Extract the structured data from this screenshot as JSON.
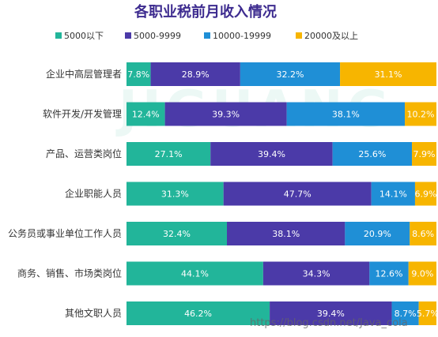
{
  "chart_data": {
    "type": "bar",
    "orientation": "horizontal",
    "stacked": true,
    "title": "各职业税前月收入情况",
    "xlabel": "",
    "ylabel": "",
    "xlim": [
      0,
      100
    ],
    "grid": false,
    "legend_position": "top",
    "categories": [
      "企业中高层管理者",
      "软件开发/开发管理",
      "产品、运营类岗位",
      "企业职能人员",
      "公务员或事业单位工作人员",
      "商务、销售、市场类岗位",
      "其他文职人员"
    ],
    "series": [
      {
        "name": "5000以下",
        "color": "#22b59a",
        "values": [
          7.8,
          12.4,
          27.1,
          31.3,
          32.4,
          44.1,
          46.2
        ]
      },
      {
        "name": "5000-9999",
        "color": "#4b3aa8",
        "values": [
          28.9,
          39.3,
          39.4,
          47.7,
          38.1,
          34.3,
          39.4
        ]
      },
      {
        "name": "10000-19999",
        "color": "#1f8fd6",
        "values": [
          32.2,
          38.1,
          25.6,
          14.1,
          20.9,
          12.6,
          8.7
        ]
      },
      {
        "name": "20000及以上",
        "color": "#f7b500",
        "values": [
          31.1,
          10.2,
          7.9,
          6.9,
          8.6,
          9.0,
          5.7
        ]
      }
    ]
  },
  "watermark": {
    "logo": "JIGUANG",
    "logo_cn": "极光",
    "url": "https://blog.csdn.net/Java_cola"
  }
}
